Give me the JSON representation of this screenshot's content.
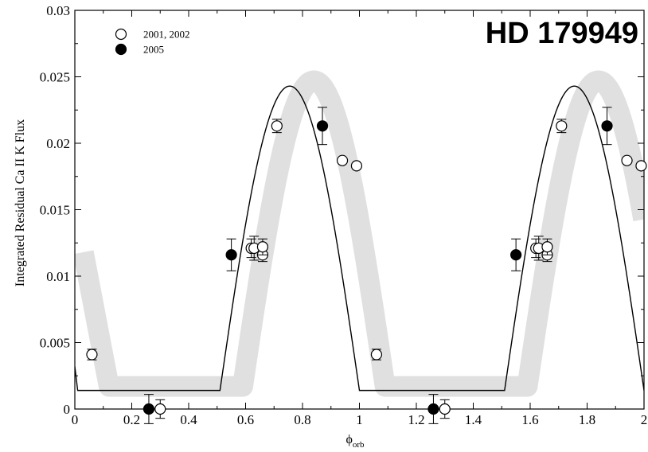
{
  "chart_data": {
    "type": "scatter",
    "title": "",
    "annotation": "HD 179949",
    "xlabel": "ϕ",
    "xlabel_subscript": "orb",
    "ylabel": "Integrated Residual Ca II K Flux",
    "xlim": [
      0,
      2
    ],
    "ylim": [
      0,
      0.03
    ],
    "grid": false,
    "legend_position": "top-left",
    "x_ticks": [
      0,
      0.2,
      0.4,
      0.6,
      0.8,
      1,
      1.2,
      1.4,
      1.6,
      1.8,
      2
    ],
    "x_tick_labels": [
      "0",
      "0.2",
      "0.4",
      "0.6",
      "0.8",
      "1",
      "1.2",
      "1.4",
      "1.6",
      "1.8",
      "2"
    ],
    "y_ticks": [
      0,
      0.005,
      0.01,
      0.015,
      0.02,
      0.025,
      0.03
    ],
    "y_tick_labels": [
      "0",
      "0.005",
      "0.01",
      "0.015",
      "0.02",
      "0.025",
      "0.03"
    ],
    "series": [
      {
        "name": "2001, 2002",
        "marker": "open-circle",
        "color": "#000000",
        "points": [
          {
            "x": 0.06,
            "y": 0.0041,
            "err": 0.0004
          },
          {
            "x": 0.3,
            "y": 0.0,
            "err": 0.0007
          },
          {
            "x": 0.62,
            "y": 0.0121,
            "err": 0.0007
          },
          {
            "x": 0.63,
            "y": 0.0121,
            "err": 0.0009
          },
          {
            "x": 0.66,
            "y": 0.0116,
            "err": 0.0005
          },
          {
            "x": 0.66,
            "y": 0.0122,
            "err": 0.0006
          },
          {
            "x": 0.71,
            "y": 0.0213,
            "err": 0.0005
          },
          {
            "x": 0.94,
            "y": 0.0187,
            "err": 0
          },
          {
            "x": 0.99,
            "y": 0.0183,
            "err": 0
          },
          {
            "x": 1.06,
            "y": 0.0041,
            "err": 0.0004
          },
          {
            "x": 1.3,
            "y": 0.0,
            "err": 0.0007
          },
          {
            "x": 1.62,
            "y": 0.0121,
            "err": 0.0007
          },
          {
            "x": 1.63,
            "y": 0.0121,
            "err": 0.0009
          },
          {
            "x": 1.66,
            "y": 0.0116,
            "err": 0.0005
          },
          {
            "x": 1.66,
            "y": 0.0122,
            "err": 0.0006
          },
          {
            "x": 1.71,
            "y": 0.0213,
            "err": 0.0005
          },
          {
            "x": 1.94,
            "y": 0.0187,
            "err": 0
          },
          {
            "x": 1.99,
            "y": 0.0183,
            "err": 0
          }
        ]
      },
      {
        "name": "2005",
        "marker": "filled-circle",
        "color": "#000000",
        "points": [
          {
            "x": 0.26,
            "y": 0.0,
            "err": 0.0011
          },
          {
            "x": 0.55,
            "y": 0.0116,
            "err": 0.0012
          },
          {
            "x": 0.87,
            "y": 0.0213,
            "err": 0.0014
          },
          {
            "x": 1.26,
            "y": 0.0,
            "err": 0.0011
          },
          {
            "x": 1.55,
            "y": 0.0116,
            "err": 0.0012
          },
          {
            "x": 1.87,
            "y": 0.0213,
            "err": 0.0014
          }
        ]
      }
    ],
    "model_line": {
      "color": "#000000",
      "baseline": 0.0014,
      "peak": 0.0243,
      "rise_start": 0.51,
      "peak_phase": 0.755,
      "fall_end": 1.0,
      "x_start": -0.005,
      "x_end": 2.0,
      "y_start": 0.0032
    },
    "shaded_band": {
      "color": "#e0e0e0",
      "baseline": 0.0017,
      "peak": 0.0247,
      "rise_start": 0.59,
      "peak_phase": 0.84,
      "fall_end": 1.09,
      "right_end_y": 0.0125,
      "left_start_y": 0.0118
    }
  }
}
